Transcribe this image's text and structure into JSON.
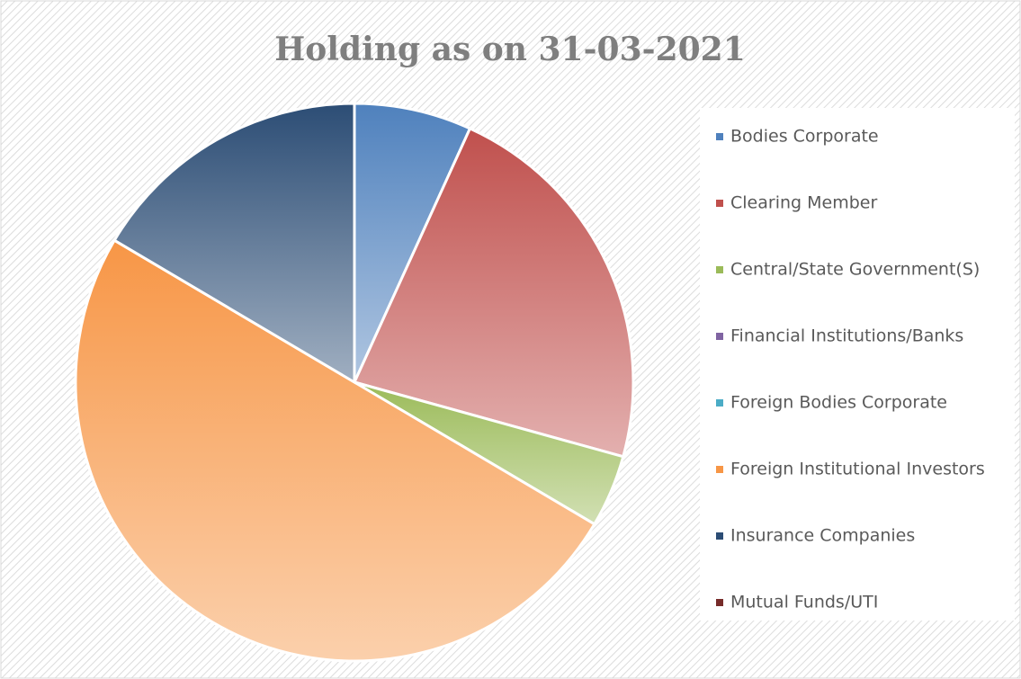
{
  "chart_data": {
    "type": "pie",
    "title": "Holding as on 31-03-2021",
    "categories": [
      "Bodies Corporate",
      "Clearing Member",
      "Central/State Government(S)",
      "Financial Institutions/Banks",
      "Foreign Bodies Corporate",
      "Foreign Institutional Investors",
      "Insurance Companies",
      "Mutual Funds/UTI"
    ],
    "values": [
      6.8,
      22.5,
      4.2,
      0,
      0,
      50,
      16.5,
      0
    ],
    "colors": [
      "#4f81bd",
      "#c0504d",
      "#9bbb59",
      "#8064a2",
      "#4bacc6",
      "#f79646",
      "#2c4d75",
      "#772c2a"
    ],
    "legend": "right"
  }
}
